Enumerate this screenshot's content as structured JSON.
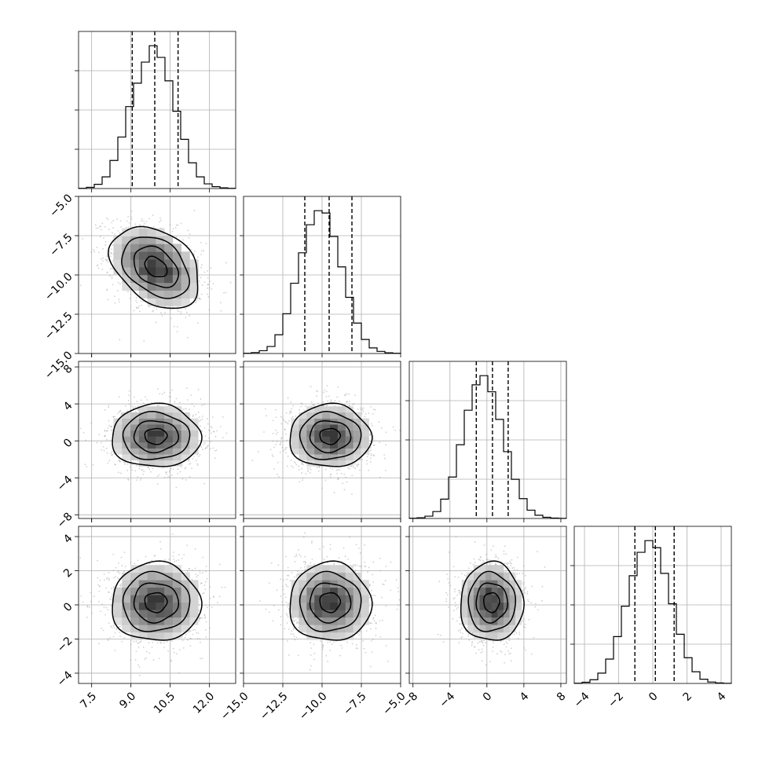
{
  "chart_data": {
    "type": "corner",
    "parameters": [
      {
        "range": [
          7.0,
          13.0
        ],
        "ticks": [
          7.5,
          9.0,
          10.5,
          12.0
        ],
        "tick_labels": [
          "7.5",
          "9.0",
          "10.5",
          "12.0"
        ],
        "hist": {
          "edges": [
            7.0,
            7.3,
            7.6,
            7.9,
            8.2,
            8.5,
            8.8,
            9.1,
            9.4,
            9.7,
            10.0,
            10.3,
            10.6,
            10.9,
            11.2,
            11.5,
            11.8,
            12.1,
            12.4,
            12.7,
            13.0
          ],
          "counts": [
            5,
            25,
            90,
            250,
            600,
            1100,
            1750,
            2250,
            2700,
            3050,
            2800,
            2300,
            1650,
            1050,
            550,
            250,
            100,
            40,
            15,
            5
          ]
        },
        "quantiles": [
          9.05,
          9.91,
          10.8
        ]
      },
      {
        "range": [
          -15.0,
          -5.0
        ],
        "ticks": [
          -15.0,
          -12.5,
          -10.0,
          -7.5,
          -5.0
        ],
        "tick_labels": [
          "−15.0",
          "−12.5",
          "−10.0",
          "−7.5",
          "−5.0"
        ],
        "hist": {
          "edges": [
            -15.0,
            -14.5,
            -14.0,
            -13.5,
            -13.0,
            -12.5,
            -12.0,
            -11.5,
            -11.0,
            -10.5,
            -10.0,
            -9.5,
            -9.0,
            -8.5,
            -8.0,
            -7.5,
            -7.0,
            -6.5,
            -6.0,
            -5.5,
            -5.0
          ],
          "counts": [
            5,
            20,
            60,
            150,
            400,
            850,
            1500,
            2150,
            2750,
            3050,
            3000,
            2500,
            1850,
            1200,
            650,
            300,
            120,
            45,
            15,
            5
          ]
        },
        "quantiles": [
          -11.1,
          -9.55,
          -8.1
        ]
      },
      {
        "range": [
          -8.4,
          8.6
        ],
        "ticks": [
          -8,
          -4,
          0,
          4,
          8
        ],
        "tick_labels": [
          "−8",
          "−4",
          "0",
          "4",
          "8"
        ],
        "hist": {
          "edges": [
            -8.4,
            -7.55,
            -6.7,
            -5.85,
            -5.0,
            -4.15,
            -3.3,
            -2.45,
            -1.6,
            -0.75,
            0.1,
            0.95,
            1.8,
            2.65,
            3.5,
            4.35,
            5.2,
            6.05,
            6.9,
            7.75,
            8.6
          ],
          "counts": [
            5,
            15,
            50,
            150,
            420,
            900,
            1600,
            2350,
            2900,
            3100,
            2750,
            2150,
            1450,
            850,
            430,
            180,
            70,
            25,
            8,
            3
          ]
        },
        "quantiles": [
          -1.15,
          0.6,
          2.3
        ]
      },
      {
        "range": [
          -4.6,
          4.6
        ],
        "ticks": [
          -4,
          -2,
          0,
          2,
          4
        ],
        "tick_labels": [
          "−4",
          "−2",
          "0",
          "2",
          "4"
        ],
        "hist": {
          "edges": [
            -4.6,
            -4.14,
            -3.68,
            -3.22,
            -2.76,
            -2.3,
            -1.84,
            -1.38,
            -0.92,
            -0.46,
            0.0,
            0.46,
            0.92,
            1.38,
            1.84,
            2.3,
            2.76,
            3.22,
            3.68,
            4.14,
            4.6
          ],
          "counts": [
            5,
            25,
            80,
            220,
            520,
            1000,
            1650,
            2300,
            2800,
            3050,
            2900,
            2350,
            1700,
            1050,
            550,
            250,
            90,
            30,
            10,
            3
          ]
        },
        "quantiles": [
          -1.05,
          0.15,
          1.25
        ]
      }
    ],
    "pairs": [
      {
        "x": 0,
        "y": 1,
        "center": [
          9.95,
          -9.5
        ],
        "sigma": [
          0.85,
          1.3
        ],
        "rho": -0.35
      },
      {
        "x": 0,
        "y": 2,
        "center": [
          9.95,
          0.5
        ],
        "sigma": [
          0.85,
          1.7
        ],
        "rho": 0.0
      },
      {
        "x": 1,
        "y": 2,
        "center": [
          -9.5,
          0.5
        ],
        "sigma": [
          1.3,
          1.7
        ],
        "rho": 0.0
      },
      {
        "x": 0,
        "y": 3,
        "center": [
          9.95,
          0.15
        ],
        "sigma": [
          0.85,
          1.15
        ],
        "rho": 0.0
      },
      {
        "x": 1,
        "y": 3,
        "center": [
          -9.5,
          0.15
        ],
        "sigma": [
          1.3,
          1.15
        ],
        "rho": 0.0
      },
      {
        "x": 2,
        "y": 3,
        "center": [
          0.5,
          0.15
        ],
        "sigma": [
          1.7,
          1.15
        ],
        "rho": 0.0
      }
    ],
    "contour_levels_sigma": [
      0.5,
      1.0,
      1.5,
      2.0
    ],
    "grid": true,
    "colors": {
      "line": "#000000",
      "grid": "#b0b0b0",
      "scatter": "#9a9a9a",
      "density_dark": "#3a3a3a"
    }
  }
}
